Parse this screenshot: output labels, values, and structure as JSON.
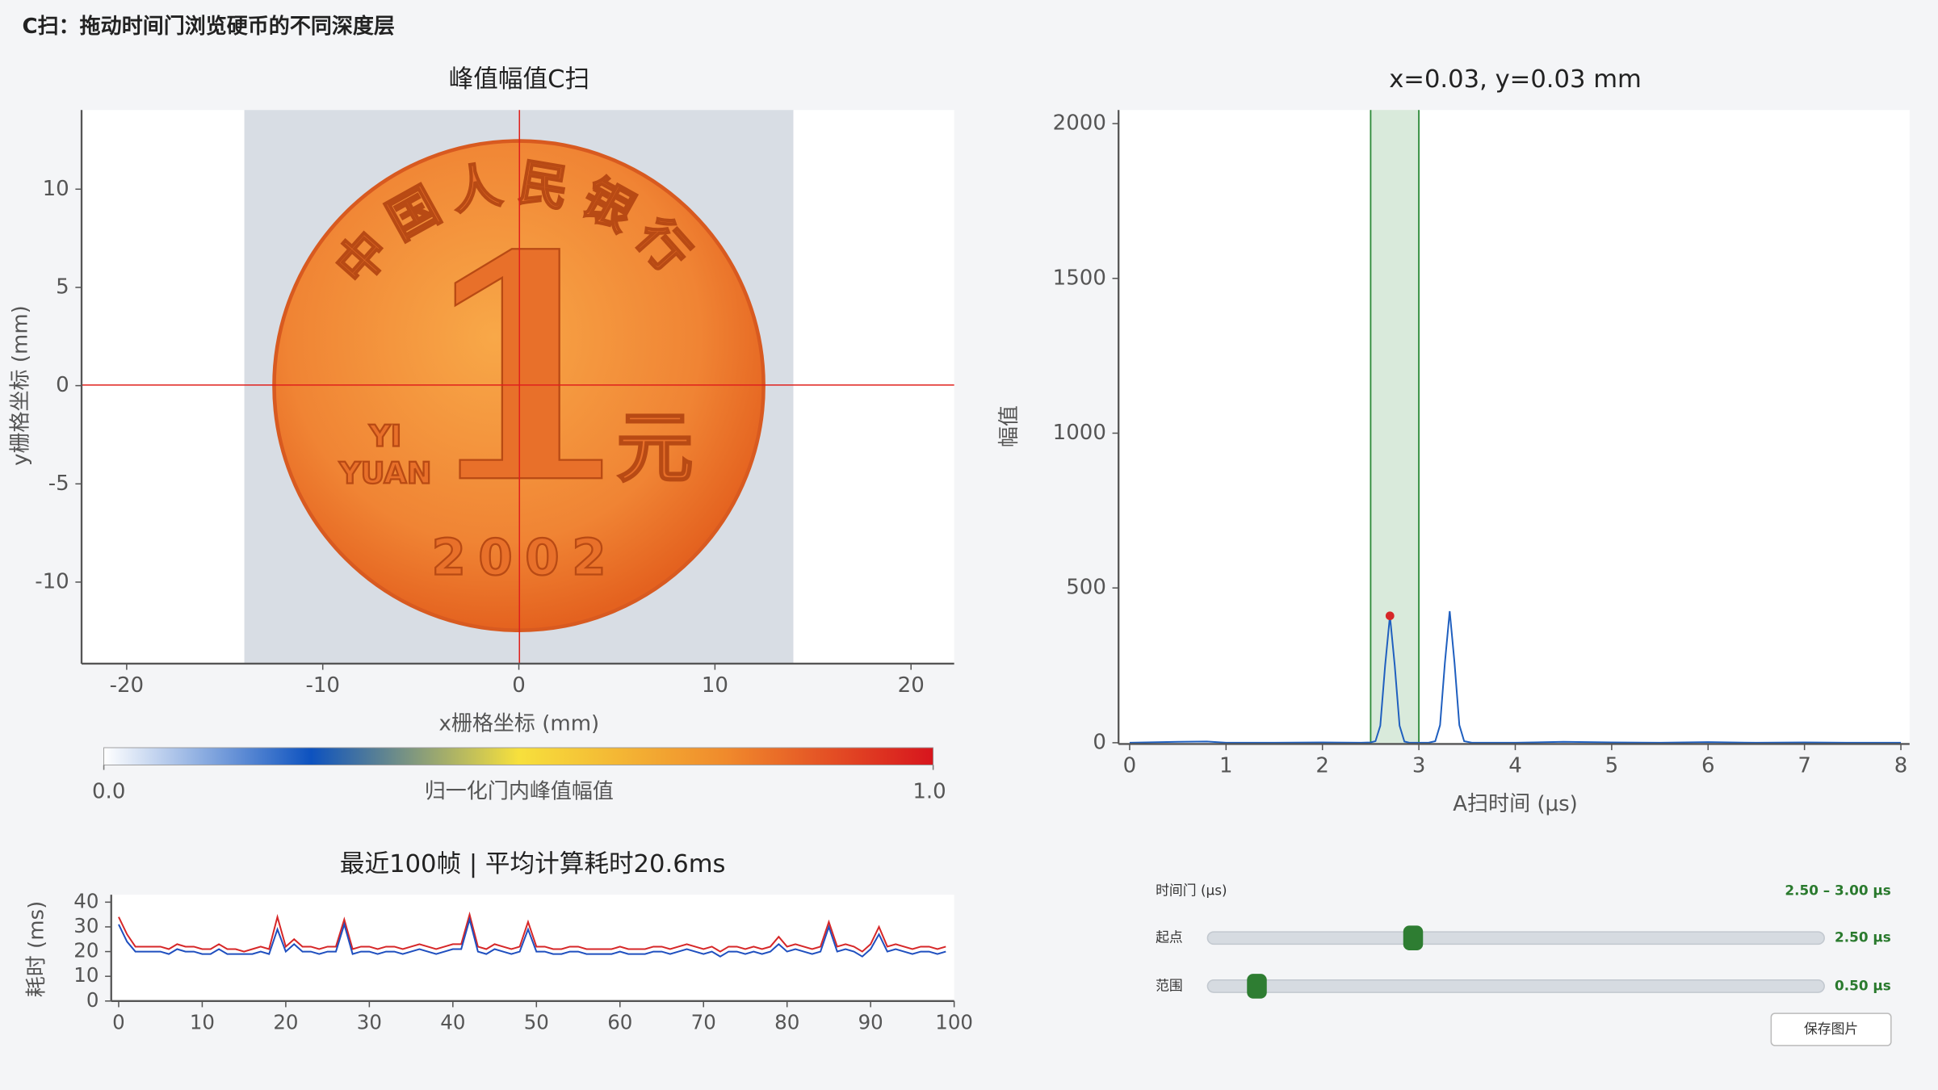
{
  "header": {
    "title": "C扫：拖动时间门浏览硬币的不同深度层"
  },
  "cscan": {
    "type": "image",
    "title": "峰值幅值C扫",
    "xlabel": "x栅格坐标 (mm)",
    "ylabel": "y栅格坐标 (mm)",
    "xlim": [
      -22.3,
      22.2
    ],
    "ylim": [
      -14.15,
      14.03
    ],
    "xticks": [
      -20,
      -10,
      0,
      10,
      20
    ],
    "yticks": [
      -10,
      -5,
      0,
      5,
      10
    ],
    "image_extent": [
      -14,
      14
    ],
    "cursor": {
      "x": 0.03,
      "y": 0.03
    },
    "cursor_color": "#e0201c",
    "coin_text": {
      "numeral": "1",
      "unit": "元",
      "pinyin_1": "YI",
      "pinyin_2": "YUAN",
      "year": "2002",
      "issuer": "中国人民银行"
    },
    "colorbar": {
      "label": "归一化门内峰值幅值",
      "lim": [
        0,
        1
      ],
      "ticks": [
        {
          "value": 0,
          "label": "0.0"
        },
        {
          "value": 1,
          "label": "1.0"
        }
      ],
      "colors": [
        "#ffffff",
        "#0d52bf",
        "#f7e03c",
        "#f08a2c",
        "#d7151d"
      ]
    }
  },
  "ascan": {
    "type": "line",
    "title": "x=0.03, y=0.03 mm",
    "xlabel": "A扫时间 (μs)",
    "ylabel": "幅值",
    "xlim": [
      -0.115,
      8.09
    ],
    "ylim": [
      -4,
      2044
    ],
    "xticks": [
      0,
      1,
      2,
      3,
      4,
      5,
      6,
      7,
      8
    ],
    "yticks": [
      0,
      500,
      1000,
      1500,
      2000
    ],
    "gate": [
      2.5,
      3.0
    ],
    "gate_color": "#2e8b3a",
    "peak": {
      "x": 2.7,
      "y": 410
    },
    "peak_color": "#d62728",
    "x": [
      0,
      0.5,
      0.8,
      1,
      1.5,
      2,
      2.4,
      2.5,
      2.55,
      2.6,
      2.65,
      2.7,
      2.75,
      2.8,
      2.85,
      2.9,
      3.0,
      3.1,
      3.17,
      3.22,
      3.27,
      3.32,
      3.37,
      3.42,
      3.47,
      3.55,
      3.7,
      4,
      4.5,
      5,
      5.5,
      6,
      6.5,
      7,
      7.5,
      8
    ],
    "series": [
      {
        "color": "#1f5fbf",
        "values": [
          0,
          3,
          4,
          0,
          0,
          1,
          0,
          1,
          5,
          55,
          249,
          410,
          249,
          55,
          4,
          0,
          0,
          0,
          5,
          57,
          258,
          425,
          258,
          57,
          5,
          0,
          0,
          0,
          3,
          1,
          0,
          2,
          0,
          1,
          0,
          0
        ]
      }
    ]
  },
  "timing": {
    "type": "line",
    "title": "最近100帧 | 平均计算耗时20.6ms",
    "ylabel": "耗时 (ms)",
    "xlim": [
      -0.89,
      100
    ],
    "ylim": [
      0,
      43
    ],
    "xticks": [
      0,
      10,
      20,
      30,
      40,
      50,
      60,
      70,
      80,
      90,
      100
    ],
    "yticks": [
      0,
      10,
      20,
      30,
      40
    ],
    "x": [
      0,
      1,
      2,
      3,
      4,
      5,
      6,
      7,
      8,
      9,
      10,
      11,
      12,
      13,
      14,
      15,
      16,
      17,
      18,
      19,
      20,
      21,
      22,
      23,
      24,
      25,
      26,
      27,
      28,
      29,
      30,
      31,
      32,
      33,
      34,
      35,
      36,
      37,
      38,
      39,
      40,
      41,
      42,
      43,
      44,
      45,
      46,
      47,
      48,
      49,
      50,
      51,
      52,
      53,
      54,
      55,
      56,
      57,
      58,
      59,
      60,
      61,
      62,
      63,
      64,
      65,
      66,
      67,
      68,
      69,
      70,
      71,
      72,
      73,
      74,
      75,
      76,
      77,
      78,
      79,
      80,
      81,
      82,
      83,
      84,
      85,
      86,
      87,
      88,
      89,
      90,
      91,
      92,
      93,
      94,
      95,
      96,
      97,
      98,
      99
    ],
    "series": [
      {
        "color": "#d62728",
        "values": [
          34,
          27,
          22,
          22,
          22,
          22,
          21,
          23,
          22,
          22,
          21,
          21,
          23,
          21,
          21,
          20,
          21,
          22,
          21,
          34,
          22,
          25,
          22,
          22,
          21,
          22,
          22,
          33,
          21,
          22,
          22,
          21,
          22,
          22,
          21,
          22,
          23,
          22,
          21,
          22,
          23,
          23,
          35,
          22,
          21,
          23,
          22,
          21,
          22,
          32,
          22,
          22,
          21,
          21,
          22,
          22,
          21,
          21,
          21,
          21,
          22,
          21,
          21,
          21,
          22,
          22,
          21,
          22,
          23,
          22,
          21,
          22,
          20,
          22,
          22,
          21,
          22,
          21,
          22,
          26,
          22,
          23,
          22,
          21,
          22,
          32,
          22,
          23,
          22,
          20,
          23,
          30,
          22,
          23,
          22,
          21,
          22,
          22,
          21,
          22
        ]
      },
      {
        "color": "#1f4fbf",
        "values": [
          31,
          24,
          20,
          20,
          20,
          20,
          19,
          21,
          20,
          20,
          19,
          19,
          21,
          19,
          19,
          19,
          19,
          20,
          19,
          29,
          20,
          23,
          20,
          20,
          19,
          20,
          20,
          31,
          19,
          20,
          20,
          19,
          20,
          20,
          19,
          20,
          21,
          20,
          19,
          20,
          21,
          21,
          33,
          20,
          19,
          21,
          20,
          19,
          20,
          29,
          20,
          20,
          19,
          19,
          20,
          20,
          19,
          19,
          19,
          19,
          20,
          19,
          19,
          19,
          20,
          20,
          19,
          20,
          21,
          20,
          19,
          20,
          18,
          20,
          20,
          19,
          20,
          19,
          20,
          23,
          20,
          21,
          20,
          19,
          20,
          30,
          20,
          21,
          20,
          18,
          21,
          27,
          20,
          21,
          20,
          19,
          20,
          20,
          19,
          20
        ]
      }
    ]
  },
  "controls": {
    "gate_label": "时间门 (μs)",
    "gate_value": "2.50 – 3.00 μs",
    "sliders": [
      {
        "label": "起点",
        "value": 2.5,
        "value_label": "2.50 μs",
        "min": 0,
        "max": 7.5
      },
      {
        "label": "范围",
        "value": 0.5,
        "value_label": "0.50 μs",
        "min": 0.1,
        "max": 5.1
      }
    ],
    "button": "保存图片"
  }
}
